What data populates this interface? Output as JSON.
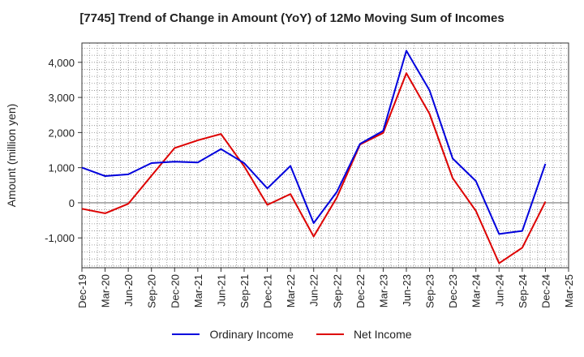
{
  "chart_data": {
    "type": "line",
    "title": "[7745]  Trend of Change in Amount (YoY) of 12Mo Moving Sum of Incomes",
    "xlabel": "",
    "ylabel": "Amount (million yen)",
    "ylim": [
      -1850,
      4550
    ],
    "yticks": [
      -1000,
      0,
      1000,
      2000,
      3000,
      4000
    ],
    "ytick_labels": [
      "-1,000",
      "0",
      "1,000",
      "2,000",
      "3,000",
      "4,000"
    ],
    "grid": true,
    "legend_position": "bottom-center",
    "categories": [
      "Dec-19",
      "Mar-20",
      "Jun-20",
      "Sep-20",
      "Dec-20",
      "Mar-21",
      "Jun-21",
      "Sep-21",
      "Dec-21",
      "Mar-22",
      "Jun-22",
      "Sep-22",
      "Dec-22",
      "Mar-23",
      "Jun-23",
      "Sep-23",
      "Dec-23",
      "Mar-24",
      "Jun-24",
      "Sep-24",
      "Dec-24",
      "Mar-25"
    ],
    "series": [
      {
        "name": "Ordinary Income",
        "color": "#0000dd",
        "values": [
          1000,
          760,
          810,
          1130,
          1170,
          1150,
          1530,
          1130,
          410,
          1050,
          -580,
          310,
          1680,
          2050,
          4330,
          3200,
          1260,
          620,
          -890,
          -800,
          1110,
          null
        ]
      },
      {
        "name": "Net Income",
        "color": "#dd0000",
        "values": [
          -170,
          -300,
          -30,
          770,
          1560,
          1780,
          1960,
          1040,
          -60,
          250,
          -960,
          150,
          1660,
          1990,
          3690,
          2530,
          700,
          -230,
          -1720,
          -1280,
          30,
          null
        ]
      }
    ]
  }
}
